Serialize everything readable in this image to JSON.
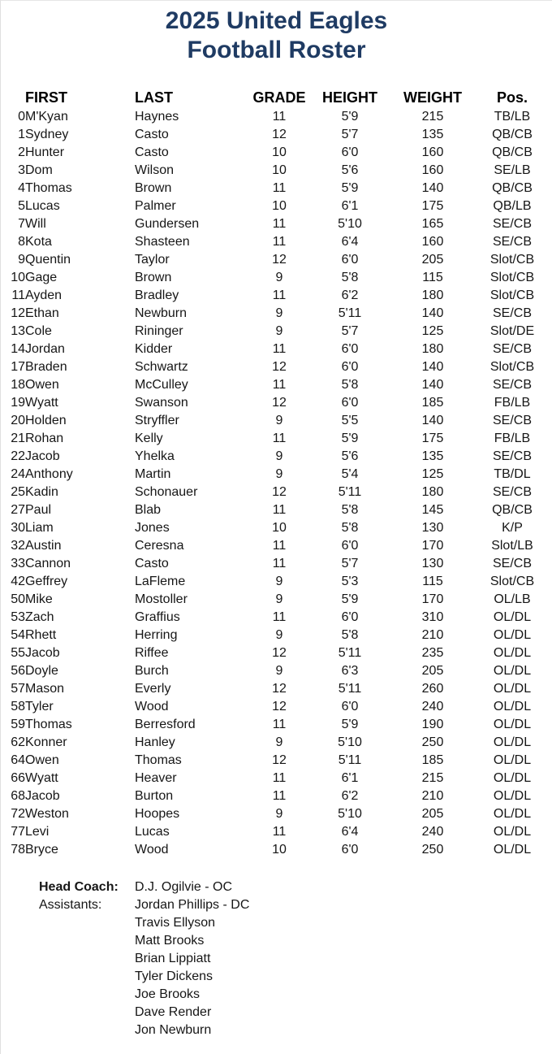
{
  "page": {
    "title_line1": "2025 United Eagles",
    "title_line2": "Football Roster",
    "title_color": "#1f3b63"
  },
  "table": {
    "headers": {
      "first": "FIRST",
      "last": "LAST",
      "grade": "GRADE",
      "height": "HEIGHT",
      "weight": "WEIGHT",
      "pos": "Pos."
    },
    "rows": [
      {
        "num": "0",
        "first": "M'Kyan",
        "last": "Haynes",
        "grade": "11",
        "height": "5'9",
        "weight": "215",
        "pos": "TB/LB"
      },
      {
        "num": "1",
        "first": "Sydney",
        "last": "Casto",
        "grade": "12",
        "height": "5'7",
        "weight": "135",
        "pos": "QB/CB"
      },
      {
        "num": "2",
        "first": "Hunter",
        "last": "Casto",
        "grade": "10",
        "height": "6'0",
        "weight": "160",
        "pos": "QB/CB"
      },
      {
        "num": "3",
        "first": "Dom",
        "last": "Wilson",
        "grade": "10",
        "height": "5'6",
        "weight": "160",
        "pos": "SE/LB"
      },
      {
        "num": "4",
        "first": "Thomas",
        "last": "Brown",
        "grade": "11",
        "height": "5'9",
        "weight": "140",
        "pos": "QB/CB"
      },
      {
        "num": "5",
        "first": "Lucas",
        "last": "Palmer",
        "grade": "10",
        "height": "6'1",
        "weight": "175",
        "pos": "QB/LB"
      },
      {
        "num": "7",
        "first": "Will",
        "last": "Gundersen",
        "grade": "11",
        "height": "5'10",
        "weight": "165",
        "pos": "SE/CB"
      },
      {
        "num": "8",
        "first": "Kota",
        "last": "Shasteen",
        "grade": "11",
        "height": "6'4",
        "weight": "160",
        "pos": "SE/CB"
      },
      {
        "num": "9",
        "first": "Quentin",
        "last": "Taylor",
        "grade": "12",
        "height": "6'0",
        "weight": "205",
        "pos": "Slot/CB"
      },
      {
        "num": "10",
        "first": "Gage",
        "last": "Brown",
        "grade": "9",
        "height": "5'8",
        "weight": "115",
        "pos": "Slot/CB"
      },
      {
        "num": "11",
        "first": "Ayden",
        "last": "Bradley",
        "grade": "11",
        "height": "6'2",
        "weight": "180",
        "pos": "Slot/CB"
      },
      {
        "num": "12",
        "first": "Ethan",
        "last": "Newburn",
        "grade": "9",
        "height": "5'11",
        "weight": "140",
        "pos": "SE/CB"
      },
      {
        "num": "13",
        "first": "Cole",
        "last": "Rininger",
        "grade": "9",
        "height": "5'7",
        "weight": "125",
        "pos": "Slot/DE"
      },
      {
        "num": "14",
        "first": "Jordan",
        "last": "Kidder",
        "grade": "11",
        "height": "6'0",
        "weight": "180",
        "pos": "SE/CB"
      },
      {
        "num": "17",
        "first": "Braden",
        "last": "Schwartz",
        "grade": "12",
        "height": "6'0",
        "weight": "140",
        "pos": "Slot/CB"
      },
      {
        "num": "18",
        "first": "Owen",
        "last": "McCulley",
        "grade": "11",
        "height": "5'8",
        "weight": "140",
        "pos": "SE/CB"
      },
      {
        "num": "19",
        "first": "Wyatt",
        "last": "Swanson",
        "grade": "12",
        "height": "6'0",
        "weight": "185",
        "pos": "FB/LB"
      },
      {
        "num": "20",
        "first": "Holden",
        "last": "Stryffler",
        "grade": "9",
        "height": "5'5",
        "weight": "140",
        "pos": "SE/CB"
      },
      {
        "num": "21",
        "first": "Rohan",
        "last": "Kelly",
        "grade": "11",
        "height": "5'9",
        "weight": "175",
        "pos": "FB/LB"
      },
      {
        "num": "22",
        "first": "Jacob",
        "last": "Yhelka",
        "grade": "9",
        "height": "5'6",
        "weight": "135",
        "pos": "SE/CB"
      },
      {
        "num": "24",
        "first": "Anthony",
        "last": "Martin",
        "grade": "9",
        "height": "5'4",
        "weight": "125",
        "pos": "TB/DL"
      },
      {
        "num": "25",
        "first": "Kadin",
        "last": "Schonauer",
        "grade": "12",
        "height": "5'11",
        "weight": "180",
        "pos": "SE/CB"
      },
      {
        "num": "27",
        "first": "Paul",
        "last": "Blab",
        "grade": "11",
        "height": "5'8",
        "weight": "145",
        "pos": "QB/CB"
      },
      {
        "num": "30",
        "first": "Liam",
        "last": "Jones",
        "grade": "10",
        "height": "5'8",
        "weight": "130",
        "pos": "K/P"
      },
      {
        "num": "32",
        "first": "Austin",
        "last": "Ceresna",
        "grade": "11",
        "height": "6'0",
        "weight": "170",
        "pos": "Slot/LB"
      },
      {
        "num": "33",
        "first": "Cannon",
        "last": "Casto",
        "grade": "11",
        "height": "5'7",
        "weight": "130",
        "pos": "SE/CB"
      },
      {
        "num": "42",
        "first": "Geffrey",
        "last": "LaFleme",
        "grade": "9",
        "height": "5'3",
        "weight": "115",
        "pos": "Slot/CB"
      },
      {
        "num": "50",
        "first": "Mike",
        "last": "Mostoller",
        "grade": "9",
        "height": "5'9",
        "weight": "170",
        "pos": "OL/LB"
      },
      {
        "num": "53",
        "first": "Zach",
        "last": "Graffius",
        "grade": "11",
        "height": "6'0",
        "weight": "310",
        "pos": "OL/DL"
      },
      {
        "num": "54",
        "first": "Rhett",
        "last": "Herring",
        "grade": "9",
        "height": "5'8",
        "weight": "210",
        "pos": "OL/DL"
      },
      {
        "num": "55",
        "first": "Jacob",
        "last": "Riffee",
        "grade": "12",
        "height": "5'11",
        "weight": "235",
        "pos": "OL/DL"
      },
      {
        "num": "56",
        "first": "Doyle",
        "last": "Burch",
        "grade": "9",
        "height": "6'3",
        "weight": "205",
        "pos": "OL/DL"
      },
      {
        "num": "57",
        "first": "Mason",
        "last": "Everly",
        "grade": "12",
        "height": "5'11",
        "weight": "260",
        "pos": "OL/DL"
      },
      {
        "num": "58",
        "first": "Tyler",
        "last": "Wood",
        "grade": "12",
        "height": "6'0",
        "weight": "240",
        "pos": "OL/DL"
      },
      {
        "num": "59",
        "first": "Thomas",
        "last": "Berresford",
        "grade": "11",
        "height": "5'9",
        "weight": "190",
        "pos": "OL/DL"
      },
      {
        "num": "62",
        "first": "Konner",
        "last": "Hanley",
        "grade": "9",
        "height": "5'10",
        "weight": "250",
        "pos": "OL/DL"
      },
      {
        "num": "64",
        "first": "Owen",
        "last": "Thomas",
        "grade": "12",
        "height": "5'11",
        "weight": "185",
        "pos": "OL/DL"
      },
      {
        "num": "66",
        "first": "Wyatt",
        "last": "Heaver",
        "grade": "11",
        "height": "6'1",
        "weight": "215",
        "pos": "OL/DL"
      },
      {
        "num": "68",
        "first": "Jacob",
        "last": "Burton",
        "grade": "11",
        "height": "6'2",
        "weight": "210",
        "pos": "OL/DL"
      },
      {
        "num": "72",
        "first": "Weston",
        "last": "Hoopes",
        "grade": "9",
        "height": "5'10",
        "weight": "205",
        "pos": "OL/DL"
      },
      {
        "num": "77",
        "first": "Levi",
        "last": "Lucas",
        "grade": "11",
        "height": "6'4",
        "weight": "240",
        "pos": "OL/DL"
      },
      {
        "num": "78",
        "first": "Bryce",
        "last": "Wood",
        "grade": "10",
        "height": "6'0",
        "weight": "250",
        "pos": "OL/DL"
      }
    ]
  },
  "coaches": {
    "head_label": "Head Coach:",
    "head_value": "D.J. Ogilvie - OC",
    "assistants_label": "Assistants:",
    "assistants": [
      "Jordan Phillips - DC",
      "Travis Ellyson",
      "Matt Brooks",
      "Brian Lippiatt",
      "Tyler Dickens",
      "Joe Brooks",
      "Dave Render",
      "Jon Newburn"
    ]
  }
}
